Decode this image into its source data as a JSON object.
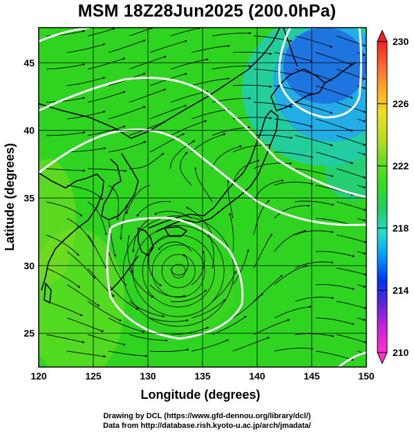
{
  "title": "MSM 18Z28Jun2025 (200.0hPa)",
  "map": {
    "xlabel": "Longitude (degrees)",
    "ylabel": "Latitude  (degrees)",
    "xlim": [
      120,
      150
    ],
    "ylim": [
      22.5,
      47.6
    ],
    "xticks": [
      "120",
      "125",
      "130",
      "135",
      "140",
      "145",
      "150"
    ],
    "yticks": [
      "25",
      "30",
      "35",
      "40",
      "45"
    ],
    "grid": true,
    "vortex_center": {
      "lon": 132.8,
      "lat": 29.6
    }
  },
  "colorbar": {
    "min": 210,
    "max": 230,
    "tick_labels": [
      "210",
      "214",
      "218",
      "222",
      "226",
      "230"
    ],
    "colors": [
      "#ff33cc",
      "#cc22dd",
      "#6622dd",
      "#0033ee",
      "#0099ff",
      "#22ddcc",
      "#22cc66",
      "#33dd22",
      "#66dd22",
      "#bbdd22",
      "#eedd22",
      "#ffaa22",
      "#ff6633",
      "#ee2222"
    ]
  },
  "credits": {
    "line1": "Drawing by DCL (https://www.gfd-dennou.org/library/dcl/)",
    "line2": "Data from http://database.rish.kyoto-u.ac.jp/arch/jmadata/"
  }
}
